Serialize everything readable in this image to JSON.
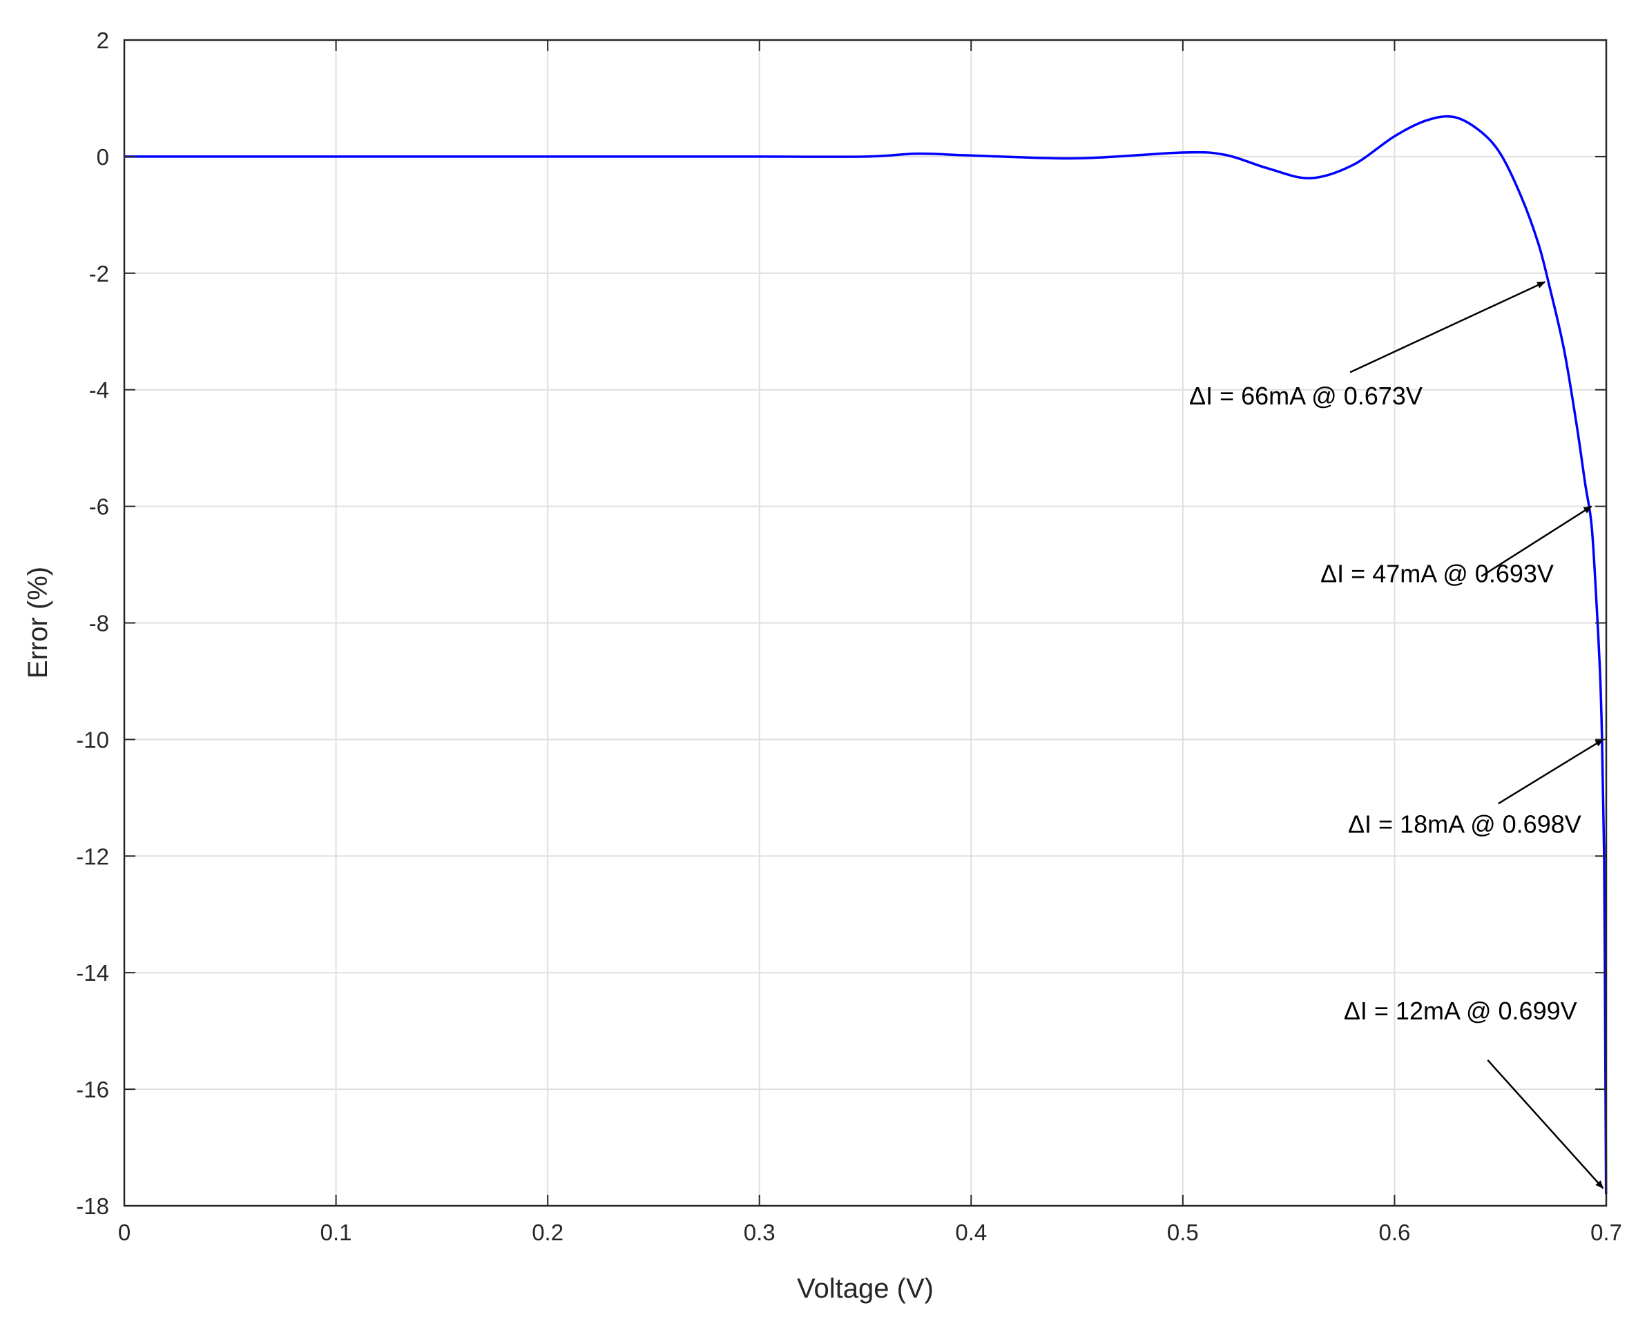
{
  "chart_data": {
    "type": "line",
    "title": "",
    "xlabel": "Voltage (V)",
    "ylabel": "Error (%)",
    "xlim": [
      0,
      0.7
    ],
    "ylim": [
      -18,
      2
    ],
    "grid": true,
    "xticks": [
      0,
      0.1,
      0.2,
      0.3,
      0.4,
      0.5,
      0.6,
      0.7
    ],
    "xtick_labels": [
      "0",
      "0.1",
      "0.2",
      "0.3",
      "0.4",
      "0.5",
      "0.6",
      "0.7"
    ],
    "yticks": [
      2,
      0,
      -2,
      -4,
      -6,
      -8,
      -10,
      -12,
      -14,
      -16,
      -18
    ],
    "ytick_labels": [
      "2",
      "0",
      "-2",
      "-4",
      "-6",
      "-8",
      "-10",
      "-12",
      "-14",
      "-16",
      "-18"
    ],
    "series": [
      {
        "color": "#0000ff",
        "x": [
          0,
          0.1,
          0.2,
          0.3,
          0.35,
          0.375,
          0.4,
          0.45,
          0.5,
          0.52,
          0.54,
          0.56,
          0.58,
          0.6,
          0.615,
          0.628,
          0.64,
          0.65,
          0.66,
          0.668,
          0.673,
          0.68,
          0.686,
          0.69,
          0.693,
          0.695,
          0.697,
          0.698,
          0.699,
          0.6995,
          0.6999
        ],
        "y": [
          0,
          0,
          0,
          0,
          0,
          0.05,
          0.02,
          -0.03,
          0.07,
          0.03,
          -0.2,
          -0.37,
          -0.15,
          0.35,
          0.62,
          0.68,
          0.45,
          0.05,
          -0.7,
          -1.5,
          -2.2,
          -3.3,
          -4.6,
          -5.6,
          -6.3,
          -7.4,
          -8.8,
          -10.0,
          -12.0,
          -15.0,
          -17.8
        ]
      }
    ],
    "annotations": [
      {
        "text": "ΔI = 66mA @ 0.673V",
        "label_x": 0.503,
        "label_y": -4.25,
        "arrow_from_x": 0.579,
        "arrow_from_y": -3.7,
        "arrow_to_x": 0.671,
        "arrow_to_y": -2.15
      },
      {
        "text": "ΔI = 47mA @ 0.693V",
        "label_x": 0.565,
        "label_y": -7.3,
        "arrow_from_x": 0.641,
        "arrow_from_y": -7.2,
        "arrow_to_x": 0.693,
        "arrow_to_y": -6.0
      },
      {
        "text": "ΔI = 18mA @ 0.698V",
        "label_x": 0.578,
        "label_y": -11.6,
        "arrow_from_x": 0.649,
        "arrow_from_y": -11.1,
        "arrow_to_x": 0.6985,
        "arrow_to_y": -10.0
      },
      {
        "text": "ΔI = 12mA @ 0.699V",
        "label_x": 0.576,
        "label_y": -14.8,
        "arrow_from_x": 0.644,
        "arrow_from_y": -15.5,
        "arrow_to_x": 0.6985,
        "arrow_to_y": -17.7
      }
    ]
  }
}
